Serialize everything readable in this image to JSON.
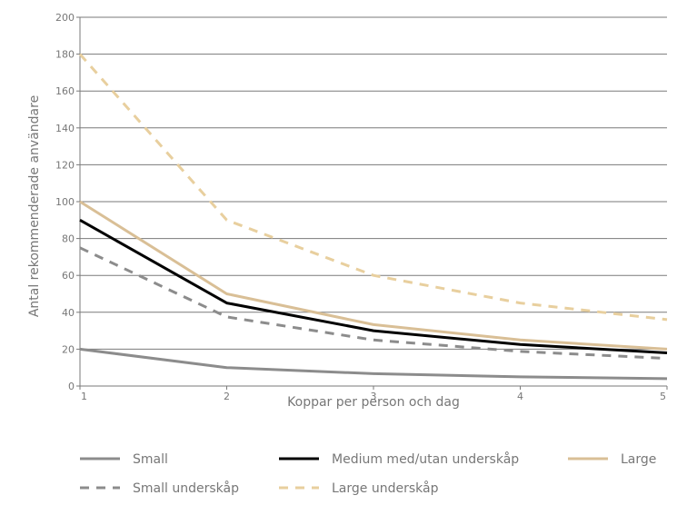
{
  "chart_data": {
    "type": "line",
    "title": "",
    "xlabel": "Koppar per person och dag",
    "ylabel": "Antal rekommenderade användare",
    "x": [
      1,
      2,
      3,
      4,
      5
    ],
    "x_tick_labels": [
      "1",
      "2",
      "3",
      "4",
      "5"
    ],
    "xlim": [
      1,
      5
    ],
    "ylim": [
      0,
      200
    ],
    "y_ticks": [
      0,
      20,
      40,
      60,
      80,
      100,
      120,
      140,
      160,
      180,
      200
    ],
    "grid": "horizontal",
    "legend_position": "bottom",
    "series": [
      {
        "name": "Small",
        "values": [
          20,
          10,
          6.7,
          5,
          4
        ],
        "color": "#8c8c8c",
        "dash": "solid"
      },
      {
        "name": "Medium med/utan underskåp",
        "values": [
          90,
          45,
          30,
          22.5,
          18
        ],
        "color": "#000000",
        "dash": "solid"
      },
      {
        "name": "Large",
        "values": [
          100,
          50,
          33.3,
          25,
          20
        ],
        "color": "#d9bf96",
        "dash": "solid"
      },
      {
        "name": "Small underskåp",
        "values": [
          75,
          37.5,
          25,
          18.75,
          15
        ],
        "color": "#8c8c8c",
        "dash": "dashed"
      },
      {
        "name": "Large underskåp",
        "values": [
          180,
          90,
          60,
          45,
          36
        ],
        "color": "#e8cf9e",
        "dash": "dashed"
      }
    ]
  }
}
